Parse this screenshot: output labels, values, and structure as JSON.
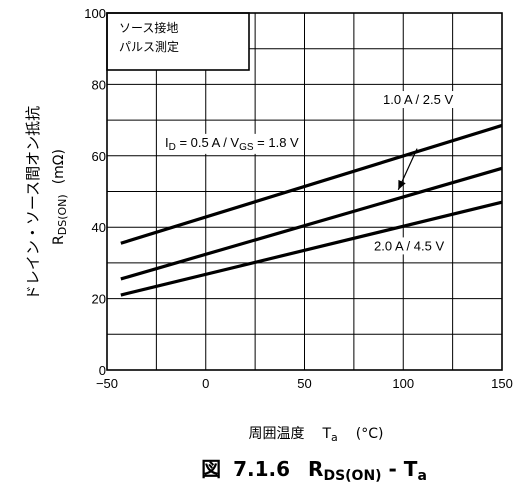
{
  "chart_data": {
    "type": "line",
    "xlim": [
      -50,
      150
    ],
    "ylim": [
      0,
      100
    ],
    "x_ticks": [
      -50,
      0,
      50,
      100,
      150
    ],
    "y_ticks": [
      0,
      20,
      40,
      60,
      80,
      100
    ],
    "x_tick_labels": [
      "−50",
      "0",
      "50",
      "100",
      "150"
    ],
    "y_tick_labels": [
      "0",
      "20",
      "40",
      "60",
      "80",
      "100"
    ],
    "grid": true,
    "series": [
      {
        "name": "I_D = 0.5 A / V_GS = 1.8 V",
        "x": [
          -43,
          150
        ],
        "y": [
          35.5,
          68.5
        ]
      },
      {
        "name": "1.0 A / 2.5 V",
        "x": [
          -43,
          150
        ],
        "y": [
          25.5,
          56.5
        ]
      },
      {
        "name": "2.0 A / 4.5 V",
        "x": [
          -43,
          150
        ],
        "y": [
          21,
          47
        ]
      }
    ],
    "series_labels": {
      "s1_prefix": "I",
      "s1_sub_d": "D",
      "s1_mid": " = 0.5 A / V",
      "s1_sub_gs": "GS",
      "s1_suffix": " = 1.8 V",
      "s2": "1.0 A / 2.5 V",
      "s3": "2.0 A / 4.5 V"
    },
    "legend_box": {
      "line1": "ソース接地",
      "line2": "パルス測定"
    },
    "xlabel": {
      "jp": "周囲温度",
      "sym": "T",
      "sub": "a",
      "unit": "(°C)"
    },
    "ylabel": {
      "jp": "ドレイン・ソース間オン抵抗",
      "sym": "R",
      "sub": "DS(ON)",
      "unit": "(mΩ)"
    },
    "caption": {
      "fig": "図",
      "num": "7.1.6",
      "sym": "R",
      "sub": "DS(ON)",
      "sep": " - T",
      "sub2": "a"
    }
  }
}
